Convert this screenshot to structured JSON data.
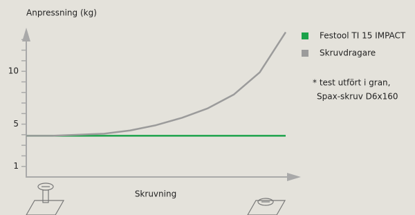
{
  "chart_data": {
    "type": "line",
    "y_label": "Anpressning (kg)",
    "x_label": "Skruvning",
    "categories": [
      null,
      null,
      null,
      null,
      null,
      null,
      null,
      null,
      null,
      null,
      null
    ],
    "series": [
      {
        "name": "Festool TI 15 IMPACT",
        "color": "#1ba24a",
        "values": [
          3.9,
          3.9,
          3.9,
          3.9,
          3.9,
          3.9,
          3.9,
          3.9,
          3.9,
          3.9,
          3.9
        ]
      },
      {
        "name": "Skruvdragare",
        "color": "#9b9b9b",
        "values": [
          3.9,
          3.9,
          4.0,
          4.1,
          4.4,
          4.9,
          5.6,
          6.5,
          7.8,
          9.9,
          13.7
        ]
      }
    ],
    "ylim": [
      0,
      14
    ],
    "yticks": [
      1,
      5,
      10
    ],
    "yminorticks": [
      2,
      3,
      4,
      6,
      7,
      8,
      9,
      11,
      12,
      13
    ],
    "note": [
      "* test utfört i gran,",
      "Spax-skruv D6x160"
    ]
  }
}
